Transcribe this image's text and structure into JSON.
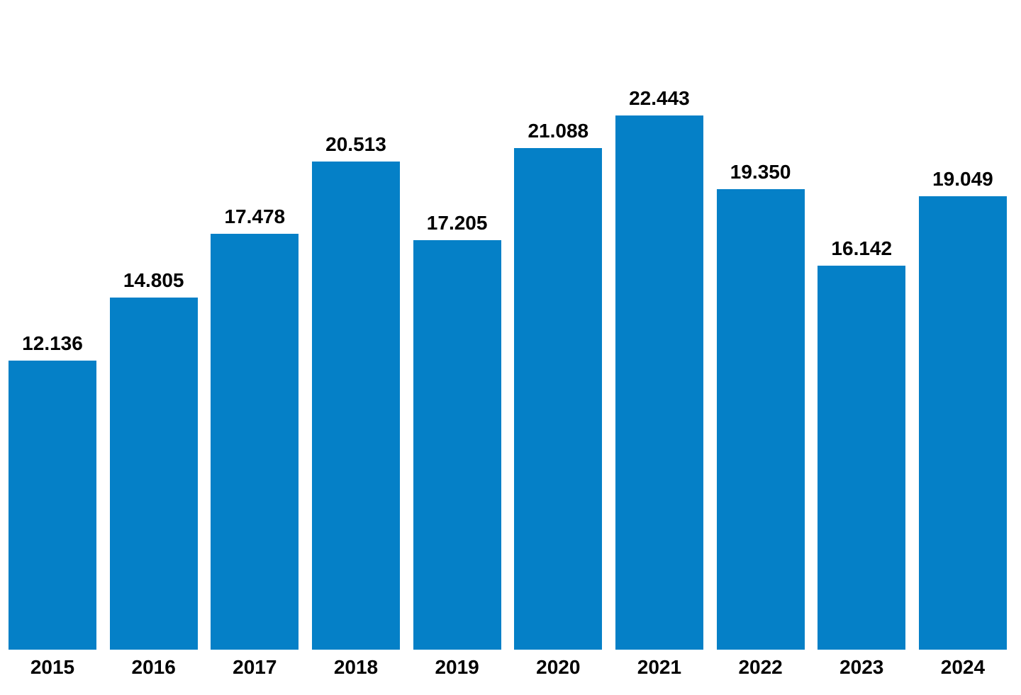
{
  "chart_data": {
    "type": "bar",
    "title": "",
    "categories": [
      "2015",
      "2016",
      "2017",
      "2018",
      "2019",
      "2020",
      "2021",
      "2022",
      "2023",
      "2024"
    ],
    "values": [
      12136,
      14805,
      17478,
      20513,
      17205,
      21088,
      22443,
      19350,
      16142,
      19049
    ],
    "value_labels": [
      "12.136",
      "14.805",
      "17.478",
      "20.513",
      "17.205",
      "21.088",
      "22.443",
      "19.350",
      "16.142",
      "19.049"
    ],
    "xlabel": "",
    "ylabel": "",
    "ylim": [
      0,
      22443
    ],
    "grid": false,
    "axes_visible": false,
    "legend_position": "none",
    "bar_color": "#0580C7",
    "label_color": "#000000",
    "background_color": "#FFFFFF"
  }
}
